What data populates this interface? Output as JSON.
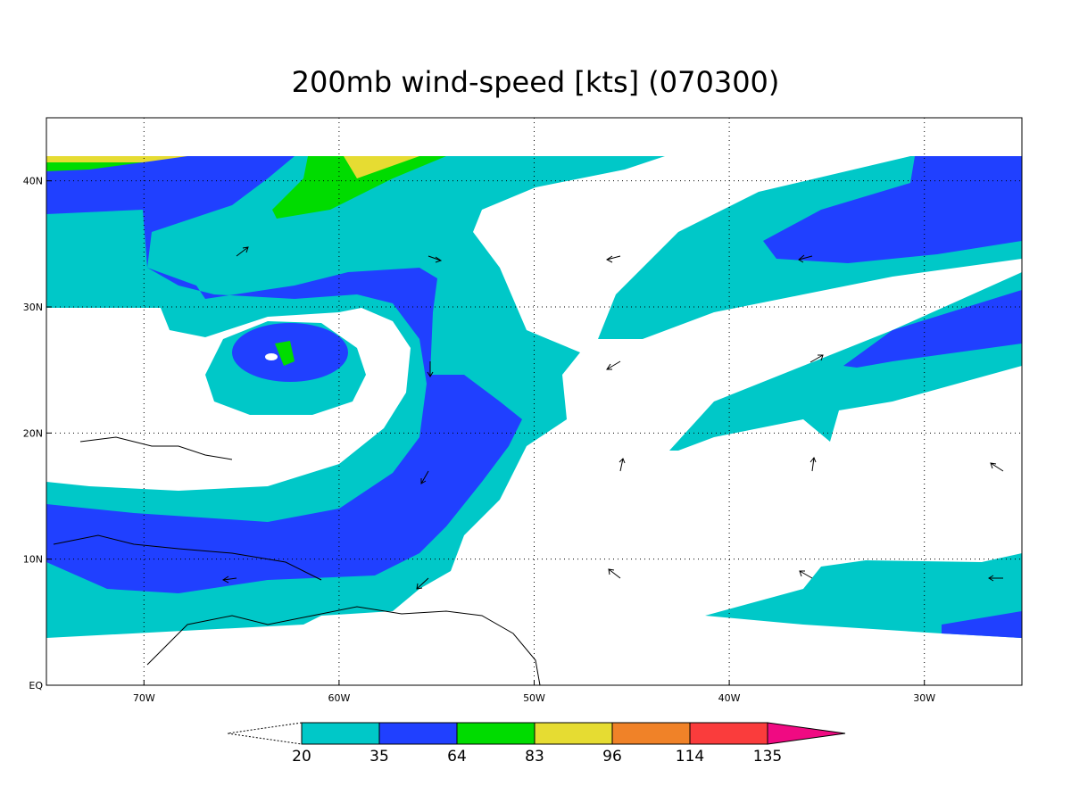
{
  "chart_data": {
    "type": "filled-contour-map",
    "title": "200mb wind-speed [kts] (070300)",
    "xlim": [
      -75,
      -25
    ],
    "ylim": [
      0,
      45
    ],
    "xticks": [
      {
        "value": -70,
        "label": "70W"
      },
      {
        "value": -60,
        "label": "60W"
      },
      {
        "value": -50,
        "label": "50W"
      },
      {
        "value": -40,
        "label": "40W"
      },
      {
        "value": -30,
        "label": "30W"
      }
    ],
    "yticks": [
      {
        "value": 0,
        "label": "EQ"
      },
      {
        "value": 10,
        "label": "10N"
      },
      {
        "value": 20,
        "label": "20N"
      },
      {
        "value": 30,
        "label": "30N"
      },
      {
        "value": 40,
        "label": "40N"
      }
    ],
    "grid": true,
    "colorbar": {
      "levels": [
        20,
        35,
        64,
        83,
        96,
        114,
        135
      ],
      "colors": [
        "#00c8c8",
        "#2040ff",
        "#00dc00",
        "#e6dc32",
        "#f08228",
        "#fa3c3c",
        "#f00a82"
      ]
    }
  }
}
